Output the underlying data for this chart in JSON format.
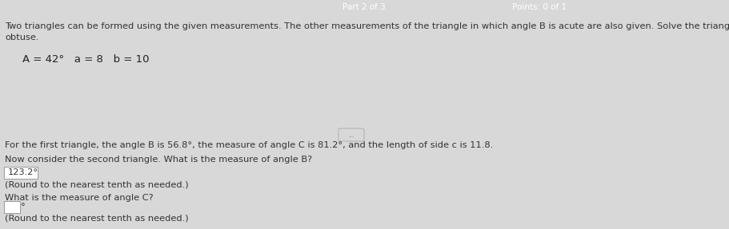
{
  "top_bar_color": "#5b9bd5",
  "top_bar_text": "Part 2 of 3",
  "top_bar_points": "Points: 0 of 1",
  "section1_bg": "#d8d8d8",
  "section2_bg": "#ebebeb",
  "intro_line1": "Two triangles can be formed using the given measurements. The other measurements of the triangle in which angle B is acute are also given. Solve the triangle in which angle B is",
  "intro_line2": "obtuse.",
  "given_line": "A = 42°   a = 8   b = 10",
  "divider_btn_text": "...",
  "para1": "For the first triangle, the angle B is 56.8°, the measure of angle C is 81.2°, and the length of side c is 11.8.",
  "q1_label": "Now consider the second triangle. What is the measure of angle B?",
  "q1_answer": "123.2°",
  "q1_note": "(Round to the nearest tenth as needed.)",
  "q2_label": "What is the measure of angle C?",
  "q2_note": "(Round to the nearest tenth as needed.)",
  "font_size_body": 8.2,
  "font_size_given": 9.5
}
